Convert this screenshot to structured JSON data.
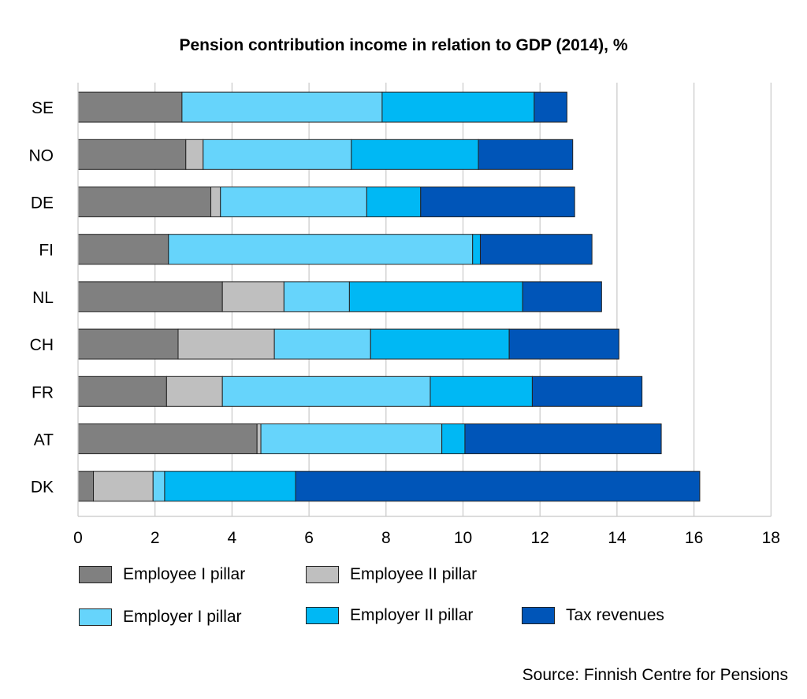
{
  "chart_data": {
    "type": "bar",
    "orientation": "horizontal",
    "stacked": true,
    "title": "Pension contribution income in relation to GDP (2014), %",
    "categories": [
      "SE",
      "NO",
      "DE",
      "FI",
      "NL",
      "CH",
      "FR",
      "AT",
      "DK"
    ],
    "series": [
      {
        "name": "Employee I pillar",
        "color": "#808080",
        "values": [
          2.7,
          2.8,
          3.45,
          2.35,
          3.75,
          2.6,
          2.3,
          4.65,
          0.4
        ]
      },
      {
        "name": "Employee II pillar",
        "color": "#bfbfbf",
        "values": [
          0.0,
          0.45,
          0.25,
          0.0,
          1.6,
          2.5,
          1.45,
          0.1,
          1.55
        ]
      },
      {
        "name": "Employer I pillar",
        "color": "#66d4fb",
        "values": [
          5.2,
          3.85,
          3.8,
          7.9,
          1.7,
          2.5,
          5.4,
          4.7,
          0.3
        ]
      },
      {
        "name": "Employer II pillar",
        "color": "#00b8f4",
        "values": [
          3.95,
          3.3,
          1.4,
          0.2,
          4.5,
          3.6,
          2.65,
          0.6,
          3.4
        ]
      },
      {
        "name": "Tax revenues",
        "color": "#0055b8",
        "values": [
          0.85,
          2.45,
          4.0,
          2.9,
          2.05,
          2.85,
          2.85,
          5.1,
          10.5
        ]
      }
    ],
    "xlim": [
      0,
      18
    ],
    "xticks": [
      "0",
      "2",
      "4",
      "6",
      "8",
      "10",
      "12",
      "14",
      "16",
      "18"
    ],
    "grid": true,
    "legend_position": "bottom"
  },
  "source": "Source: Finnish Centre for Pensions"
}
